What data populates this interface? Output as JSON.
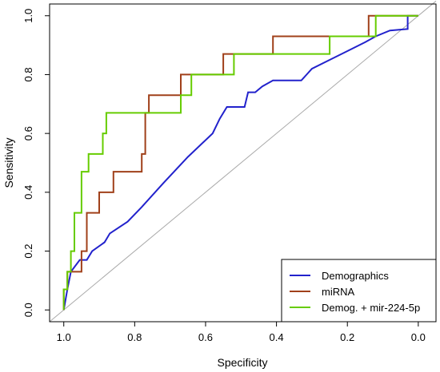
{
  "chart_data": {
    "type": "line",
    "title": "",
    "xlabel": "Specificity",
    "ylabel": "Sensitivity",
    "xlim": [
      1.04,
      -0.05
    ],
    "ylim": [
      -0.04,
      1.04
    ],
    "x_ticks": [
      1.0,
      0.8,
      0.6,
      0.4,
      0.2,
      0.0
    ],
    "x_tick_labels": [
      "1.0",
      "0.8",
      "0.6",
      "0.4",
      "0.2",
      "0.0"
    ],
    "y_ticks": [
      0.0,
      0.2,
      0.4,
      0.6,
      0.8,
      1.0
    ],
    "y_tick_labels": [
      "0.0",
      "0.2",
      "0.4",
      "0.6",
      "0.8",
      "1.0"
    ],
    "reference_line": {
      "from": [
        1.0,
        0.0
      ],
      "to": [
        0.0,
        1.0
      ],
      "color": "#aaaaaa"
    },
    "legend_position": "bottom-right",
    "series": [
      {
        "name": "Demographics",
        "color": "#2222cc",
        "points": [
          [
            1.0,
            0.0
          ],
          [
            0.99,
            0.07
          ],
          [
            0.98,
            0.13
          ],
          [
            0.955,
            0.17
          ],
          [
            0.935,
            0.17
          ],
          [
            0.92,
            0.2
          ],
          [
            0.885,
            0.23
          ],
          [
            0.87,
            0.26
          ],
          [
            0.82,
            0.3
          ],
          [
            0.78,
            0.35
          ],
          [
            0.72,
            0.43
          ],
          [
            0.65,
            0.52
          ],
          [
            0.58,
            0.6
          ],
          [
            0.56,
            0.65
          ],
          [
            0.54,
            0.69
          ],
          [
            0.49,
            0.69
          ],
          [
            0.48,
            0.74
          ],
          [
            0.46,
            0.74
          ],
          [
            0.44,
            0.76
          ],
          [
            0.41,
            0.78
          ],
          [
            0.33,
            0.78
          ],
          [
            0.3,
            0.82
          ],
          [
            0.25,
            0.85
          ],
          [
            0.2,
            0.88
          ],
          [
            0.15,
            0.91
          ],
          [
            0.12,
            0.93
          ],
          [
            0.08,
            0.95
          ],
          [
            0.03,
            0.955
          ],
          [
            0.03,
            1.0
          ],
          [
            0.0,
            1.0
          ]
        ]
      },
      {
        "name": "miRNA",
        "color": "#a0401a",
        "points": [
          [
            1.0,
            0.0
          ],
          [
            1.0,
            0.07
          ],
          [
            0.99,
            0.07
          ],
          [
            0.99,
            0.13
          ],
          [
            0.95,
            0.13
          ],
          [
            0.95,
            0.2
          ],
          [
            0.935,
            0.2
          ],
          [
            0.935,
            0.33
          ],
          [
            0.9,
            0.33
          ],
          [
            0.9,
            0.4
          ],
          [
            0.86,
            0.4
          ],
          [
            0.86,
            0.47
          ],
          [
            0.78,
            0.47
          ],
          [
            0.78,
            0.53
          ],
          [
            0.77,
            0.53
          ],
          [
            0.77,
            0.67
          ],
          [
            0.76,
            0.67
          ],
          [
            0.76,
            0.73
          ],
          [
            0.67,
            0.73
          ],
          [
            0.67,
            0.8
          ],
          [
            0.55,
            0.8
          ],
          [
            0.55,
            0.87
          ],
          [
            0.41,
            0.87
          ],
          [
            0.41,
            0.93
          ],
          [
            0.14,
            0.93
          ],
          [
            0.14,
            1.0
          ],
          [
            0.0,
            1.0
          ]
        ]
      },
      {
        "name": "Demog. + mir-224-5p",
        "color": "#66cc00",
        "points": [
          [
            1.0,
            0.0
          ],
          [
            1.0,
            0.07
          ],
          [
            0.99,
            0.07
          ],
          [
            0.99,
            0.13
          ],
          [
            0.98,
            0.13
          ],
          [
            0.98,
            0.2
          ],
          [
            0.97,
            0.2
          ],
          [
            0.97,
            0.33
          ],
          [
            0.95,
            0.33
          ],
          [
            0.95,
            0.47
          ],
          [
            0.93,
            0.47
          ],
          [
            0.93,
            0.53
          ],
          [
            0.89,
            0.53
          ],
          [
            0.89,
            0.6
          ],
          [
            0.88,
            0.6
          ],
          [
            0.88,
            0.67
          ],
          [
            0.67,
            0.67
          ],
          [
            0.67,
            0.73
          ],
          [
            0.64,
            0.73
          ],
          [
            0.64,
            0.8
          ],
          [
            0.52,
            0.8
          ],
          [
            0.52,
            0.87
          ],
          [
            0.25,
            0.87
          ],
          [
            0.25,
            0.93
          ],
          [
            0.12,
            0.93
          ],
          [
            0.12,
            1.0
          ],
          [
            0.0,
            1.0
          ]
        ]
      }
    ]
  }
}
